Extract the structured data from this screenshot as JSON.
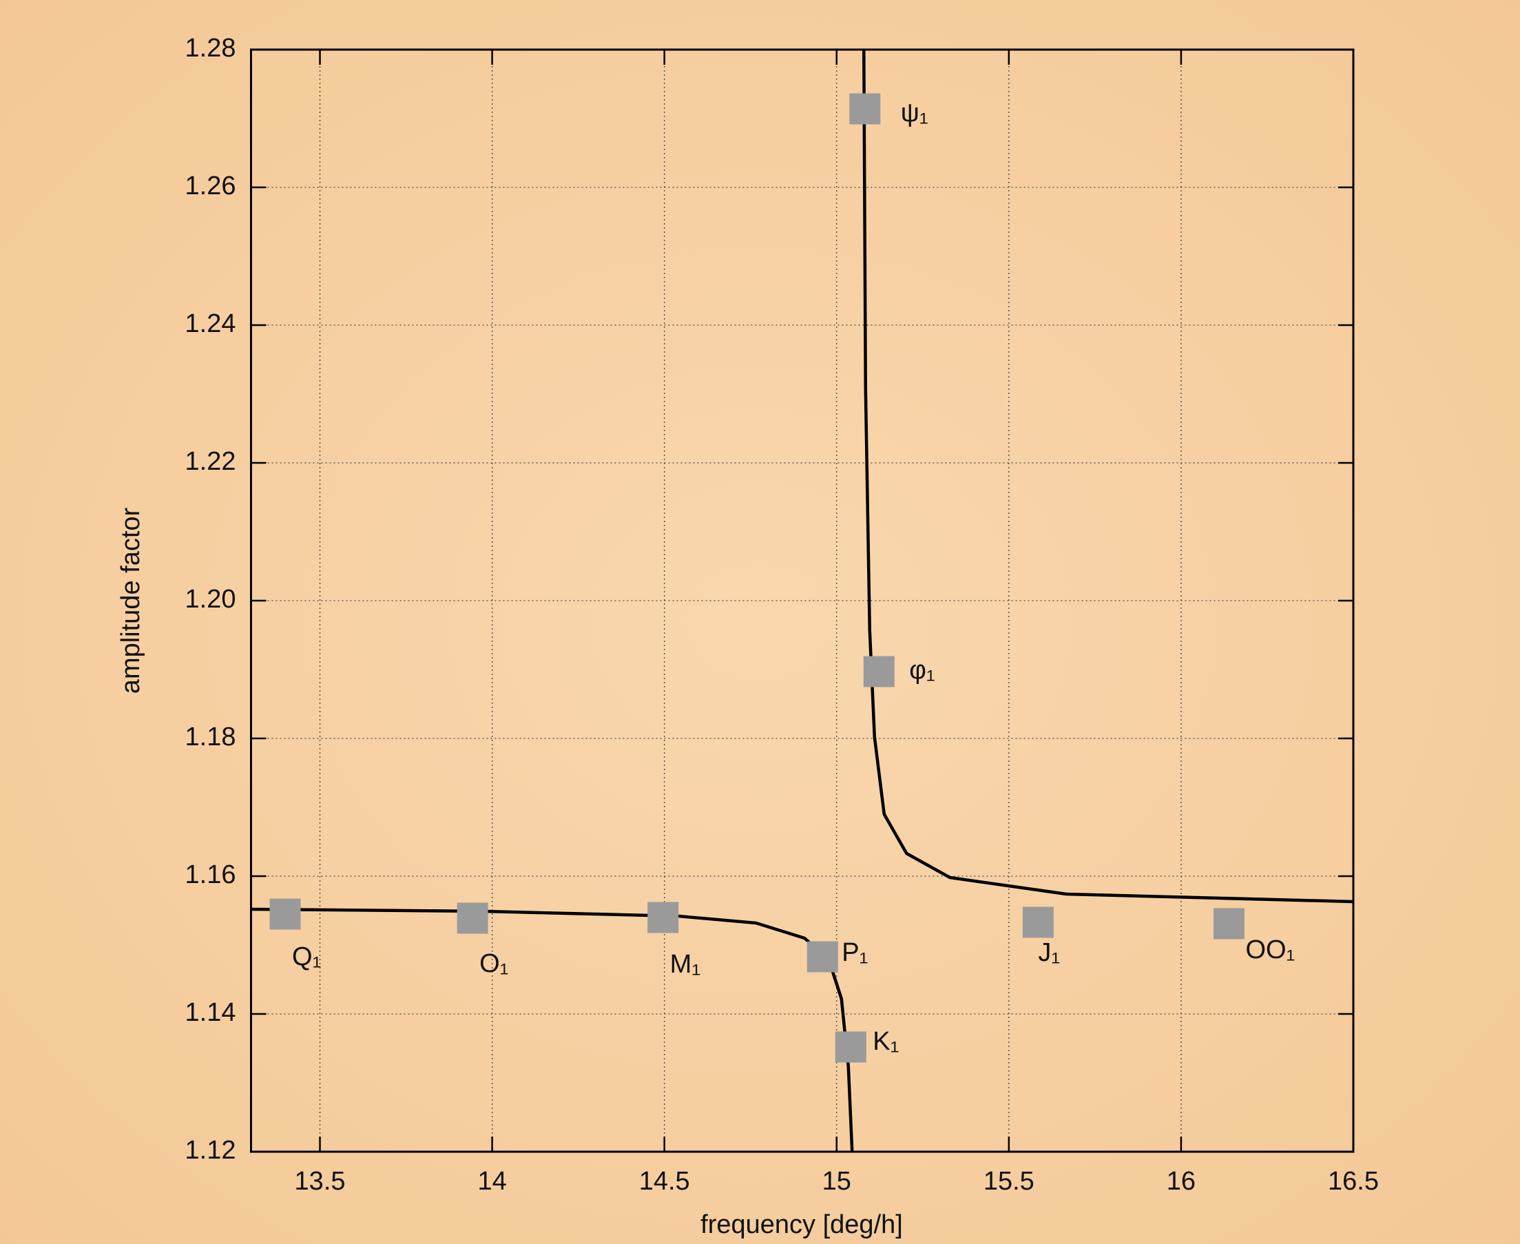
{
  "chart_data": {
    "type": "scatter",
    "x_label": "frequency [deg/h]",
    "y_label": "amplitude factor",
    "xlim": [
      13.3,
      16.5
    ],
    "xticks": [
      13.5,
      14,
      14.5,
      15,
      15.5,
      16,
      16.5
    ],
    "ylim": [
      1.12,
      1.28
    ],
    "yticks": [
      1.12,
      1.14,
      1.16,
      1.18,
      {
        "value": 1.2,
        "label": "1.20"
      },
      1.22,
      1.24,
      1.26,
      1.28
    ],
    "grid": true,
    "points": {
      "color": "#9a9a9a",
      "labels": [
        "Q₁",
        "O₁",
        "M₁",
        "P₁",
        "K₁",
        "ψ₁",
        "φ₁",
        "J₁",
        "OO₁"
      ],
      "x": [
        13.399,
        13.943,
        14.496,
        14.959,
        15.041,
        15.082,
        15.123,
        15.585,
        16.139
      ],
      "values": [
        1.1545,
        1.1539,
        1.154,
        1.1483,
        1.1352,
        1.2714,
        1.1897,
        1.1533,
        1.1531
      ]
    },
    "curve": {
      "color": "#000000",
      "x": [
        13.3,
        13.978,
        14.541,
        14.766,
        14.907,
        14.977,
        15.014,
        15.034,
        15.045,
        null,
        15.079,
        15.084,
        15.096,
        15.11,
        15.138,
        15.203,
        15.329,
        15.667,
        16.5
      ],
      "values": [
        1.1552,
        1.1549,
        1.1542,
        1.1532,
        1.151,
        1.1479,
        1.1422,
        1.1324,
        1.12,
        null,
        1.28,
        1.2309,
        1.1957,
        1.1802,
        1.169,
        1.1633,
        1.1598,
        1.1574,
        1.1563
      ]
    }
  }
}
